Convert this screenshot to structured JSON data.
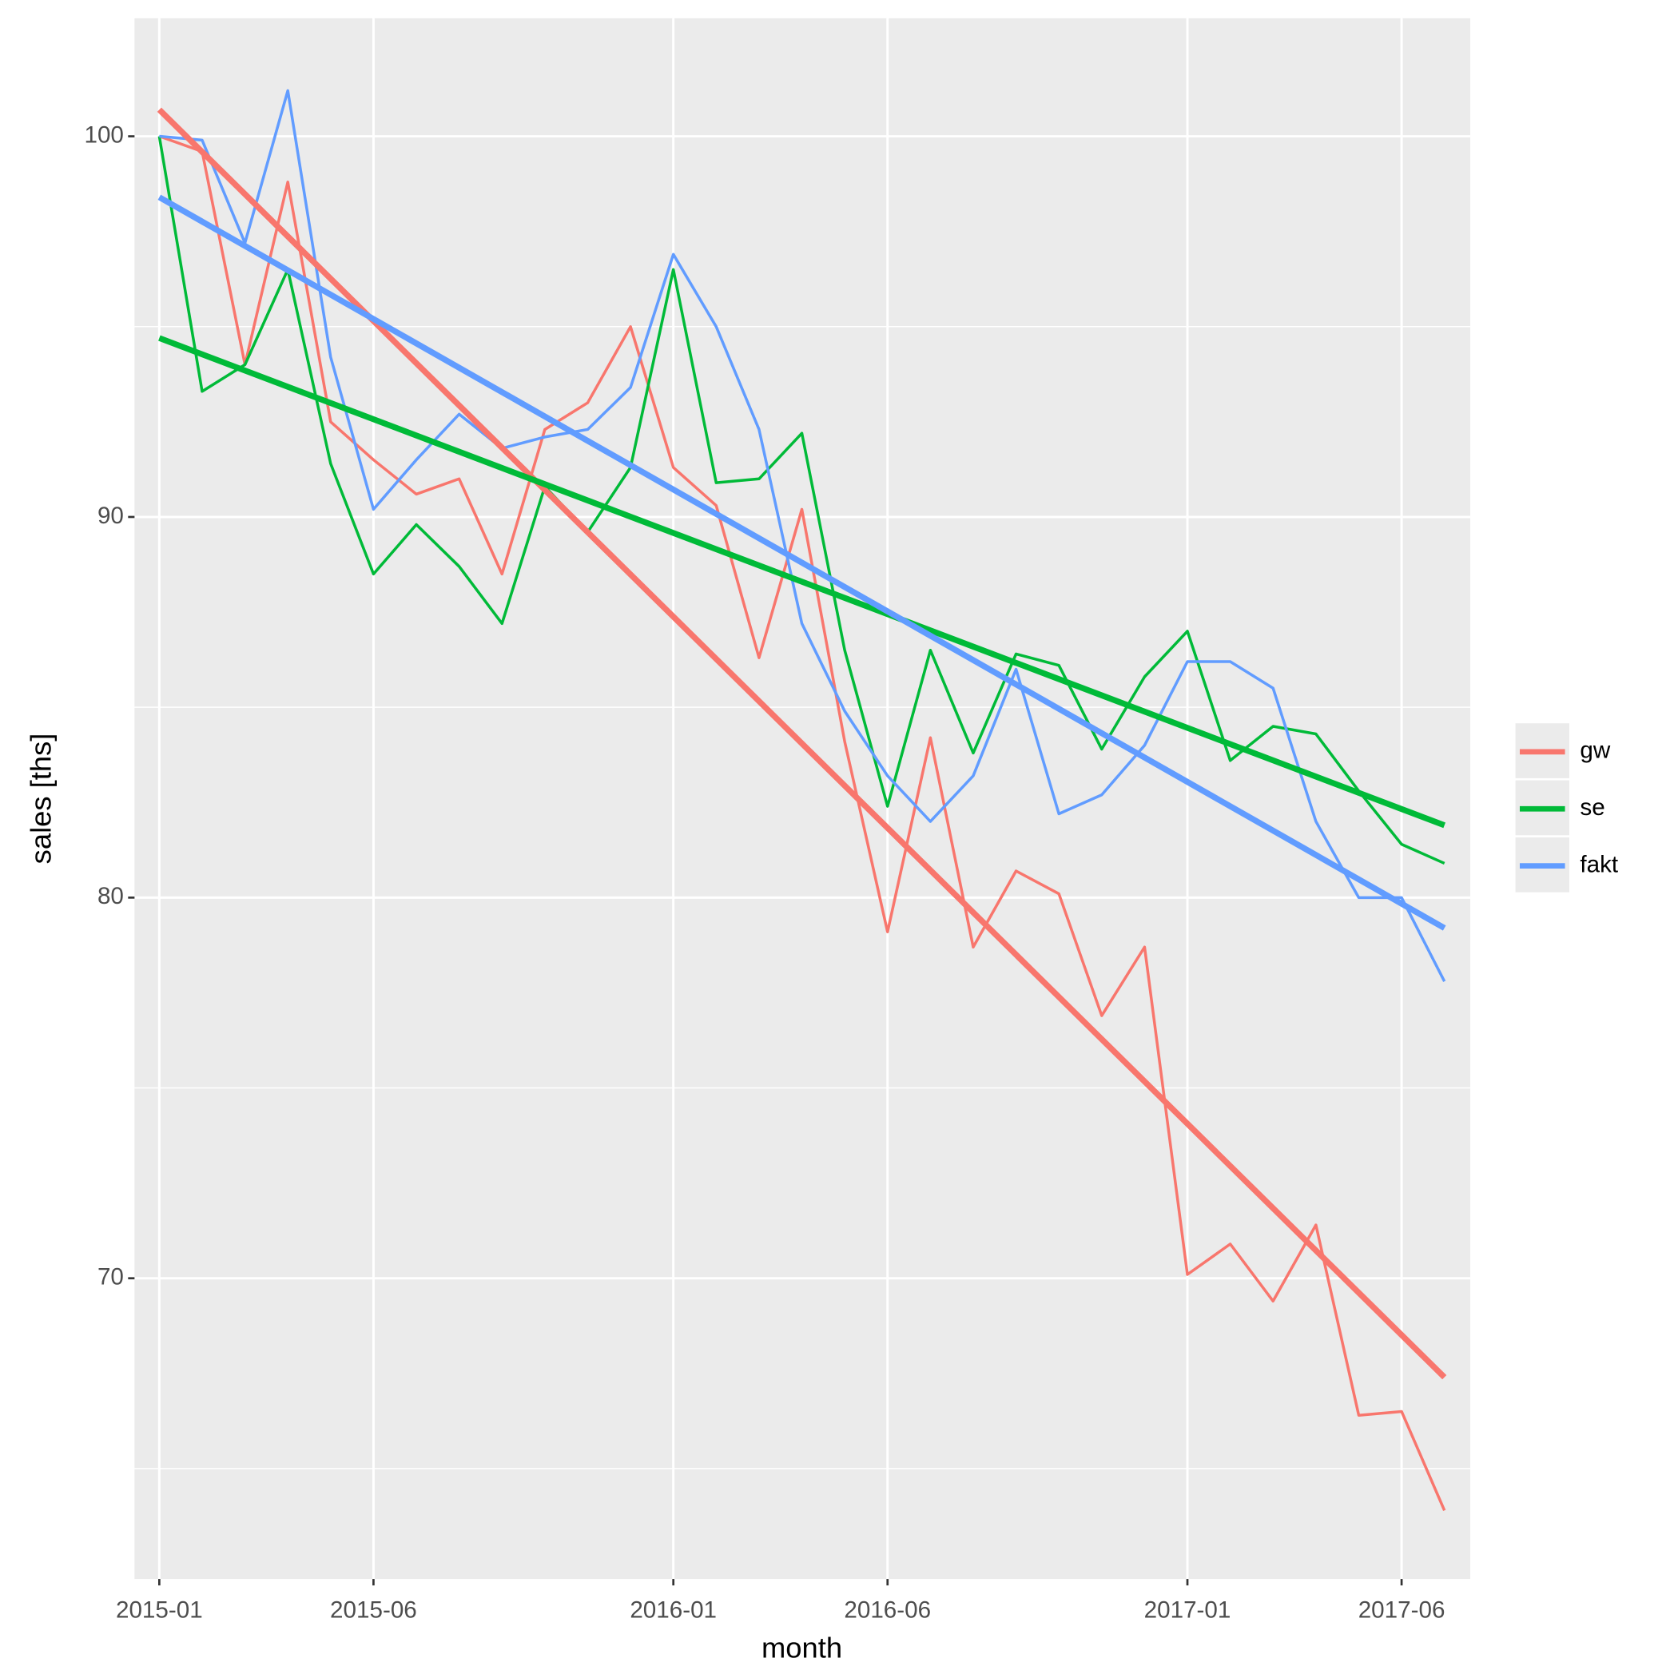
{
  "chart_data": {
    "type": "line",
    "xlabel": "month",
    "ylabel": "sales [ths]",
    "x": [
      "2015-01",
      "2015-02",
      "2015-03",
      "2015-04",
      "2015-05",
      "2015-06",
      "2015-07",
      "2015-08",
      "2015-09",
      "2015-10",
      "2015-11",
      "2015-12",
      "2016-01",
      "2016-02",
      "2016-03",
      "2016-04",
      "2016-05",
      "2016-06",
      "2016-07",
      "2016-08",
      "2016-09",
      "2016-10",
      "2016-11",
      "2016-12",
      "2017-01",
      "2017-02",
      "2017-03",
      "2017-04",
      "2017-05",
      "2017-06",
      "2017-07"
    ],
    "xticks": [
      "2015-01",
      "2015-06",
      "2016-01",
      "2016-06",
      "2017-01",
      "2017-06"
    ],
    "ylim": [
      62.1,
      103.1
    ],
    "yticks": [
      70,
      80,
      90,
      100
    ],
    "minor_yticks": [
      65,
      75,
      85,
      95
    ],
    "grid": true,
    "legend": "right",
    "series": [
      {
        "name": "gw",
        "color": "#F8766D",
        "trend": [
          100.7,
          67.4
        ],
        "values": [
          100,
          99.6,
          94.0,
          98.8,
          92.5,
          91.5,
          90.6,
          91.0,
          88.5,
          92.3,
          93.0,
          95.0,
          91.3,
          90.3,
          86.3,
          90.2,
          84.1,
          79.1,
          84.2,
          78.7,
          80.7,
          80.1,
          76.9,
          78.7,
          70.1,
          70.9,
          69.4,
          71.4,
          66.4,
          66.5,
          63.9
        ]
      },
      {
        "name": "se",
        "color": "#00BA38",
        "trend": [
          94.7,
          81.9
        ],
        "values": [
          100,
          93.3,
          94.0,
          96.5,
          91.4,
          88.5,
          89.8,
          88.7,
          87.2,
          90.8,
          89.6,
          91.3,
          96.5,
          90.9,
          91.0,
          92.2,
          86.5,
          82.4,
          86.5,
          83.8,
          86.4,
          86.1,
          83.9,
          85.8,
          87.0,
          83.6,
          84.5,
          84.3,
          82.8,
          81.4,
          80.9
        ]
      },
      {
        "name": "fakt",
        "color": "#619CFF",
        "trend": [
          98.4,
          79.2
        ],
        "values": [
          100,
          99.9,
          97.2,
          101.2,
          94.2,
          90.2,
          91.5,
          92.7,
          91.8,
          92.1,
          92.3,
          93.4,
          96.9,
          95.0,
          92.3,
          87.2,
          84.9,
          83.2,
          82.0,
          83.2,
          86.0,
          82.2,
          82.7,
          84.0,
          86.2,
          86.2,
          85.5,
          82.0,
          80.0,
          80.0,
          77.8
        ]
      }
    ]
  }
}
